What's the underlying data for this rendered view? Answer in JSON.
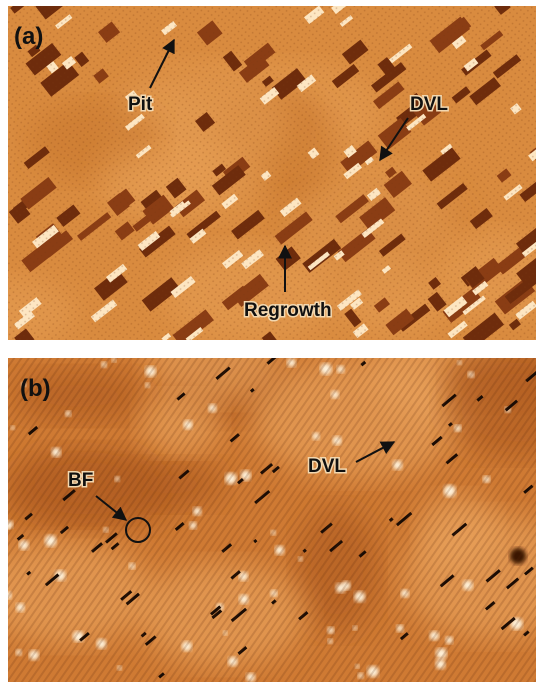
{
  "panels": [
    {
      "label": "(a)",
      "annotations": [
        "Pit",
        "DVL",
        "Regrowth"
      ]
    },
    {
      "label": "(b)",
      "annotations": [
        "BF",
        "DVL"
      ]
    }
  ]
}
